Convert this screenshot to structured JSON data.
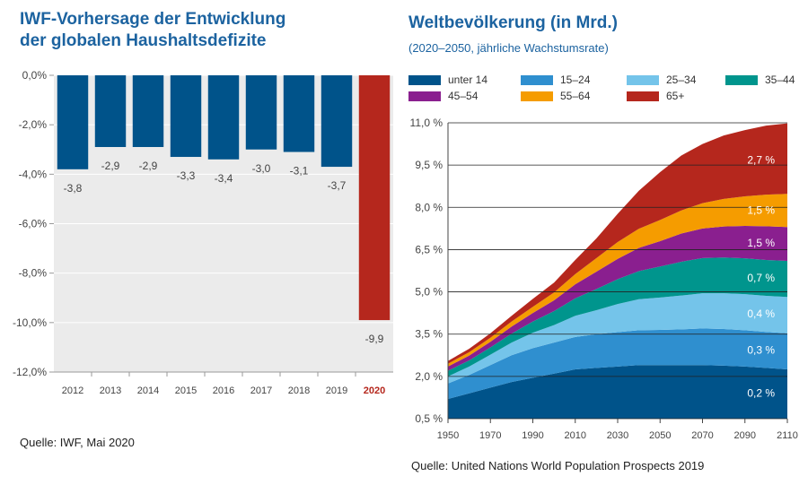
{
  "left": {
    "title_line1": "IWF-Vorhersage der Entwicklung",
    "title_line2": "der globalen Haushaltsdefizite",
    "source": "Quelle: IWF, Mai 2020"
  },
  "right": {
    "title": "Weltbevölkerung (in Mrd.)",
    "subtitle": "(2020–2050, jährliche Wachstumsrate)",
    "source": "Quelle: United Nations World Population Prospects 2019"
  },
  "colors": {
    "bar": "#00538a",
    "highlight": "#b5271d",
    "plot_bg": "#ebebeb",
    "title": "#1c63a0"
  },
  "chart_data": [
    {
      "type": "bar",
      "title": "IWF-Vorhersage der Entwicklung der globalen Haushaltsdefizite",
      "categories": [
        "2012",
        "2013",
        "2014",
        "2015",
        "2016",
        "2017",
        "2018",
        "2019",
        "2020"
      ],
      "values": [
        -3.8,
        -2.9,
        -2.9,
        -3.3,
        -3.4,
        -3.0,
        -3.1,
        -3.7,
        -9.9
      ],
      "value_labels": [
        "-3,8",
        "-2,9",
        "-2,9",
        "-3,3",
        "-3,4",
        "-3,0",
        "-3,1",
        "-3,7",
        "-9,9"
      ],
      "highlight_category": "2020",
      "ylim": [
        -12,
        0
      ],
      "yticks": [
        0,
        -2,
        -4,
        -6,
        -8,
        -10,
        -12
      ],
      "ytick_labels": [
        "0,0%",
        "-2,0%",
        "-4,0%",
        "-6,0%",
        "-8,0%",
        "-10,0%",
        "-12,0%"
      ],
      "grid": true
    },
    {
      "type": "area",
      "stacked": true,
      "title": "Weltbevölkerung (in Mrd.)",
      "subtitle": "(2020–2050, jährliche Wachstumsrate)",
      "x": [
        1950,
        1960,
        1970,
        1980,
        1990,
        2000,
        2010,
        2020,
        2030,
        2040,
        2050,
        2060,
        2070,
        2080,
        2090,
        2100,
        2110
      ],
      "series": [
        {
          "name": "unter 14",
          "color": "#00538a",
          "values": [
            0.7,
            0.9,
            1.1,
            1.3,
            1.45,
            1.6,
            1.75,
            1.8,
            1.85,
            1.9,
            1.9,
            1.9,
            1.9,
            1.88,
            1.85,
            1.8,
            1.75
          ]
        },
        {
          "name": "15–24",
          "color": "#2f8fcf",
          "values": [
            0.55,
            0.65,
            0.8,
            0.95,
            1.05,
            1.1,
            1.15,
            1.2,
            1.22,
            1.24,
            1.25,
            1.27,
            1.3,
            1.3,
            1.29,
            1.28,
            1.28
          ]
        },
        {
          "name": "25–34",
          "color": "#74c4ea",
          "values": [
            0.25,
            0.3,
            0.37,
            0.45,
            0.55,
            0.62,
            0.75,
            0.85,
            1.0,
            1.1,
            1.15,
            1.2,
            1.25,
            1.27,
            1.28,
            1.28,
            1.29
          ]
        },
        {
          "name": "35–44",
          "color": "#00958d",
          "values": [
            0.2,
            0.22,
            0.26,
            0.32,
            0.4,
            0.5,
            0.62,
            0.75,
            0.88,
            1.0,
            1.1,
            1.2,
            1.25,
            1.27,
            1.27,
            1.27,
            1.28
          ]
        },
        {
          "name": "45–54",
          "color": "#8a1f8f",
          "values": [
            0.15,
            0.17,
            0.2,
            0.25,
            0.3,
            0.38,
            0.5,
            0.62,
            0.72,
            0.82,
            0.9,
            1.0,
            1.05,
            1.1,
            1.15,
            1.2,
            1.2
          ]
        },
        {
          "name": "55–64",
          "color": "#f59c00",
          "values": [
            0.1,
            0.12,
            0.14,
            0.18,
            0.22,
            0.28,
            0.36,
            0.48,
            0.6,
            0.68,
            0.75,
            0.82,
            0.9,
            0.98,
            1.05,
            1.12,
            1.18
          ]
        },
        {
          "name": "65+",
          "color": "#b5271d",
          "values": [
            0.1,
            0.12,
            0.16,
            0.2,
            0.28,
            0.35,
            0.5,
            0.7,
            1.0,
            1.35,
            1.7,
            1.95,
            2.1,
            2.25,
            2.35,
            2.45,
            2.5
          ]
        }
      ],
      "growth_labels": [
        "0,2 %",
        "0,3 %",
        "0,4 %",
        "0,7 %",
        "1,5 %",
        "1,5 %",
        "2,7 %"
      ],
      "ylim": [
        0.5,
        11.0
      ],
      "yticks": [
        0.5,
        2.0,
        3.5,
        5.0,
        6.5,
        8.0,
        9.5,
        11.0
      ],
      "ytick_labels": [
        "0,5 %",
        "2,0 %",
        "3,5 %",
        "5,0 %",
        "6,5 %",
        "8,0 %",
        "9,5 %",
        "11,0 %"
      ],
      "xticks": [
        1950,
        1970,
        1990,
        2010,
        2030,
        2050,
        2070,
        2090,
        2110
      ],
      "xtick_labels": [
        "1950",
        "1970",
        "1990",
        "2010",
        "2030",
        "2050",
        "2070",
        "2090",
        "2110"
      ],
      "xlim": [
        1950,
        2110
      ],
      "legend": "top",
      "grid": true
    }
  ]
}
